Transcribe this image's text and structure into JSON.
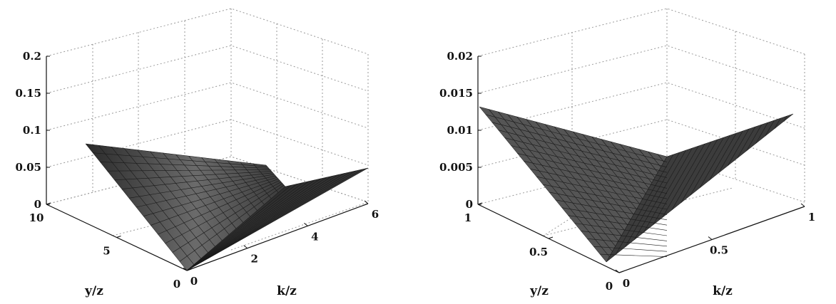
{
  "chart_data": [
    {
      "type": "surface3d",
      "xlabel": "k/z",
      "ylabel": "y/z",
      "zlabel": "",
      "xlim": [
        0,
        6
      ],
      "ylim": [
        0,
        10
      ],
      "zlim": [
        0,
        0.2
      ],
      "x_ticks": [
        "0",
        "2",
        "4",
        "6"
      ],
      "y_ticks": [
        "0",
        "5",
        "10"
      ],
      "z_ticks": [
        "0",
        "0.05",
        "0.1",
        "0.15",
        "0.2"
      ],
      "grid": true,
      "surface": {
        "description_values": "V-shaped surface, zero along diagonal",
        "corners": [
          {
            "k": 0,
            "y": 0,
            "value": 0
          },
          {
            "k": 6,
            "y": 0,
            "value": 0.05
          },
          {
            "k": 0,
            "y": 10,
            "value": 0.09
          },
          {
            "k": 6,
            "y": 10,
            "value": 0.05
          }
        ]
      }
    },
    {
      "type": "surface3d",
      "xlabel": "k/z",
      "ylabel": "y/z",
      "zlabel": "",
      "xlim": [
        0,
        1
      ],
      "ylim": [
        0,
        1
      ],
      "zlim": [
        0,
        0.02
      ],
      "x_ticks": [
        "0",
        "0.5",
        "1"
      ],
      "y_ticks": [
        "0",
        "0.5",
        "1"
      ],
      "z_ticks": [
        "0",
        "0.005",
        "0.01",
        "0.015",
        "0.02"
      ],
      "grid": true,
      "surface": {
        "corners": [
          {
            "k": 0,
            "y": 0,
            "value": 0
          },
          {
            "k": 1,
            "y": 0,
            "value": 0.013
          },
          {
            "k": 0,
            "y": 1,
            "value": 0.013
          },
          {
            "k": 1,
            "y": 1,
            "value": 0
          }
        ]
      }
    }
  ]
}
